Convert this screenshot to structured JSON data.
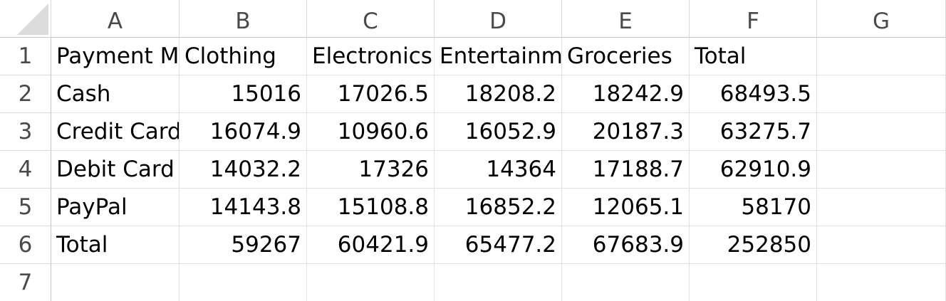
{
  "spreadsheet": {
    "columns": [
      "A",
      "B",
      "C",
      "D",
      "E",
      "F",
      "G"
    ],
    "row_numbers": [
      "1",
      "2",
      "3",
      "4",
      "5",
      "6",
      "7"
    ],
    "rows": [
      [
        "Payment Method",
        "Clothing",
        "Electronics",
        "Entertainment",
        "Groceries",
        "Total",
        ""
      ],
      [
        "Cash",
        "15016",
        "17026.5",
        "18208.2",
        "18242.9",
        "68493.5",
        ""
      ],
      [
        "Credit Card",
        "16074.9",
        "10960.6",
        "16052.9",
        "20187.3",
        "63275.7",
        ""
      ],
      [
        "Debit Card",
        "14032.2",
        "17326",
        "14364",
        "17188.7",
        "62910.9",
        ""
      ],
      [
        "PayPal",
        "14143.8",
        "15108.8",
        "16852.2",
        "12065.1",
        "58170",
        ""
      ],
      [
        "Total",
        "59267",
        "60421.9",
        "65477.2",
        "67683.9",
        "252850",
        ""
      ],
      [
        "",
        "",
        "",
        "",
        "",
        "",
        ""
      ]
    ]
  }
}
